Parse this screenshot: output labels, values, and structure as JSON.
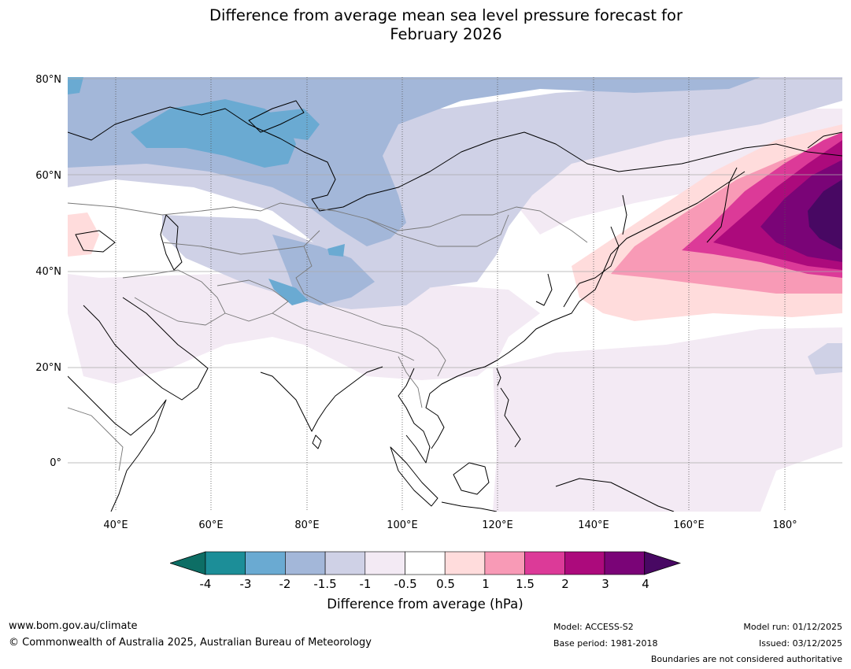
{
  "title_line1": "Difference from average mean sea level pressure forecast for",
  "title_line2": "February 2026",
  "lat_labels": [
    "80°N",
    "60°N",
    "40°N",
    "20°N",
    "0°"
  ],
  "lon_labels": [
    "40°E",
    "60°E",
    "80°E",
    "100°E",
    "120°E",
    "140°E",
    "160°E",
    "180°"
  ],
  "colorbar": {
    "ticks": [
      "-4",
      "-3",
      "-2",
      "-1.5",
      "-1",
      "-0.5",
      "0.5",
      "1",
      "1.5",
      "2",
      "3",
      "4"
    ],
    "label": "Difference from average (hPa)",
    "colors": [
      "#0d6e65",
      "#1c8e98",
      "#6aaad2",
      "#a3b7d9",
      "#cfd1e6",
      "#f3eaf4",
      "#ffffff",
      "#ffdcdc",
      "#f89ab6",
      "#dc3a98",
      "#ac0a7c",
      "#7a0477",
      "#480863"
    ]
  },
  "footer": {
    "website": "www.bom.gov.au/climate",
    "copyright": "© Commonwealth of Australia 2025, Australian Bureau of Meteorology",
    "model": "Model: ACCESS-S2",
    "base_period": "Base period: 1981-2018",
    "model_run": "Model run: 01/12/2025",
    "issued": "Issued: 03/12/2025",
    "disclaimer": "Boundaries are not considered authoritative"
  }
}
